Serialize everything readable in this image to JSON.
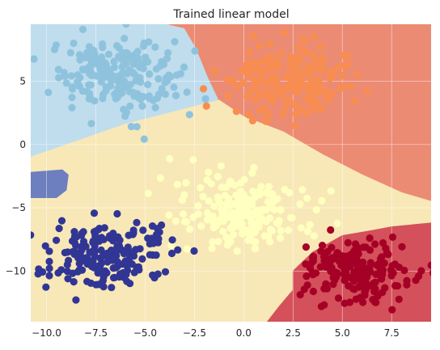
{
  "chart_data": {
    "type": "scatter",
    "title": "Trained linear model",
    "xlabel": "",
    "ylabel": "",
    "xlim": [
      -10.8,
      9.5
    ],
    "ylim": [
      -14.0,
      9.5
    ],
    "xticks": [
      -10.0,
      -7.5,
      -5.0,
      -2.5,
      0.0,
      2.5,
      5.0,
      7.5
    ],
    "xtick_labels": [
      "−10.0",
      "−7.5",
      "−5.0",
      "−2.5",
      "0.0",
      "2.5",
      "5.0",
      "7.5"
    ],
    "yticks": [
      5,
      0,
      -5,
      -10
    ],
    "ytick_labels": [
      "5",
      "0",
      "−5",
      "−10"
    ],
    "grid": true,
    "style": "seaborn-whitegrid",
    "colormap": "RdYlBu",
    "decision_regions": [
      {
        "class": 0,
        "color": "#bfdded",
        "polygon": [
          [
            -10.8,
            9.5
          ],
          [
            -6.0,
            9.5
          ],
          [
            -3.8,
            9.5
          ],
          [
            -3.0,
            9.2
          ],
          [
            -2.4,
            7.6
          ],
          [
            -1.8,
            5.3
          ],
          [
            -1.25,
            3.5
          ],
          [
            -6.0,
            1.6
          ],
          [
            -10.8,
            -1.0
          ]
        ]
      },
      {
        "class": 1,
        "color": "#ec8b73",
        "polygon": [
          [
            -3.8,
            9.5
          ],
          [
            9.5,
            9.5
          ],
          [
            9.5,
            -4.5
          ],
          [
            8.0,
            -3.8
          ],
          [
            6.0,
            -2.4
          ],
          [
            4.0,
            -0.8
          ],
          [
            2.0,
            1.0
          ],
          [
            0.0,
            2.2
          ],
          [
            -1.25,
            3.5
          ],
          [
            -1.8,
            5.3
          ],
          [
            -2.4,
            7.6
          ],
          [
            -3.0,
            9.2
          ]
        ]
      },
      {
        "class": 2,
        "color": "#f8e8b7",
        "polygon": [
          [
            -10.8,
            -1.0
          ],
          [
            -6.0,
            1.6
          ],
          [
            -1.25,
            3.5
          ],
          [
            0.0,
            2.2
          ],
          [
            2.0,
            1.0
          ],
          [
            4.0,
            -0.8
          ],
          [
            6.0,
            -2.4
          ],
          [
            8.0,
            -3.8
          ],
          [
            9.5,
            -4.5
          ],
          [
            9.5,
            -6.2
          ],
          [
            7.5,
            -6.5
          ],
          [
            6.5,
            -6.8
          ],
          [
            5.0,
            -7.2
          ],
          [
            3.5,
            -8.5
          ],
          [
            2.5,
            -10.0
          ],
          [
            2.5,
            -11.5
          ],
          [
            1.8,
            -12.8
          ],
          [
            1.2,
            -14.0
          ],
          [
            -10.8,
            -14.0
          ]
        ]
      },
      {
        "class": 3,
        "color": "#d4505a",
        "polygon": [
          [
            9.5,
            -6.2
          ],
          [
            7.5,
            -6.5
          ],
          [
            6.5,
            -6.8
          ],
          [
            5.0,
            -7.2
          ],
          [
            3.5,
            -8.5
          ],
          [
            2.5,
            -10.0
          ],
          [
            2.5,
            -11.5
          ],
          [
            1.8,
            -12.8
          ],
          [
            1.2,
            -14.0
          ],
          [
            9.5,
            -14.0
          ]
        ]
      },
      {
        "class": 4,
        "color": "#6e7fbf",
        "polygon": [
          [
            -10.8,
            -2.2
          ],
          [
            -9.2,
            -2.0
          ],
          [
            -8.9,
            -2.4
          ],
          [
            -9.0,
            -3.6
          ],
          [
            -9.5,
            -4.2
          ],
          [
            -10.8,
            -4.2
          ]
        ]
      }
    ],
    "series": [
      {
        "class": 0,
        "color": "#8fc3dd",
        "center": [
          -6.5,
          5.5
        ],
        "spread": [
          1.55,
          1.4
        ],
        "count": 200
      },
      {
        "class": 1,
        "color": "#f88d52",
        "center": [
          2.5,
          5.0
        ],
        "spread": [
          1.5,
          1.4
        ],
        "count": 200
      },
      {
        "class": 2,
        "color": "#ffffbf",
        "center": [
          0.0,
          -5.5
        ],
        "spread": [
          1.6,
          1.35
        ],
        "count": 200
      },
      {
        "class": 3,
        "color": "#a50026",
        "center": [
          5.8,
          -9.8
        ],
        "spread": [
          1.5,
          1.3
        ],
        "count": 200
      },
      {
        "class": 4,
        "color": "#313695",
        "center": [
          -7.0,
          -8.8
        ],
        "spread": [
          1.5,
          1.3
        ],
        "count": 200
      }
    ]
  }
}
